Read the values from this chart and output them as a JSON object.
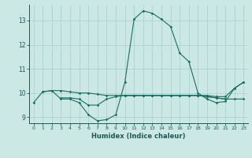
{
  "xlabel": "Humidex (Indice chaleur)",
  "bg_color": "#cce8e4",
  "grid_color": "#aacfcb",
  "line_color": "#1a6e62",
  "xlim": [
    -0.5,
    23.5
  ],
  "ylim": [
    8.75,
    13.65
  ],
  "yticks": [
    9,
    10,
    11,
    12,
    13
  ],
  "xticks": [
    0,
    1,
    2,
    3,
    4,
    5,
    6,
    7,
    8,
    9,
    10,
    11,
    12,
    13,
    14,
    15,
    16,
    17,
    18,
    19,
    20,
    21,
    22,
    23
  ],
  "series": [
    [
      9.6,
      10.05,
      10.1,
      9.75,
      9.75,
      9.6,
      9.1,
      8.85,
      8.9,
      9.1,
      10.45,
      13.05,
      13.4,
      13.3,
      13.05,
      12.75,
      11.65,
      11.3,
      10.0,
      9.75,
      9.6,
      9.65,
      10.2,
      10.45
    ],
    [
      null,
      null,
      null,
      9.8,
      9.8,
      9.75,
      9.5,
      9.5,
      9.75,
      9.85,
      9.9,
      9.9,
      9.9,
      9.9,
      9.9,
      9.9,
      9.9,
      9.9,
      9.9,
      9.85,
      9.8,
      9.75,
      null,
      null
    ],
    [
      null,
      null,
      null,
      null,
      null,
      null,
      null,
      null,
      null,
      null,
      9.9,
      9.9,
      9.9,
      9.9,
      9.9,
      9.9,
      9.9,
      9.9,
      9.9,
      9.85,
      9.8,
      9.75,
      9.75,
      9.75
    ],
    [
      null,
      10.05,
      10.1,
      10.1,
      10.05,
      10.0,
      10.0,
      9.95,
      9.9,
      9.9,
      9.9,
      9.9,
      9.9,
      9.9,
      9.9,
      9.9,
      9.9,
      9.9,
      9.9,
      9.9,
      9.85,
      9.85,
      10.2,
      10.45
    ]
  ]
}
